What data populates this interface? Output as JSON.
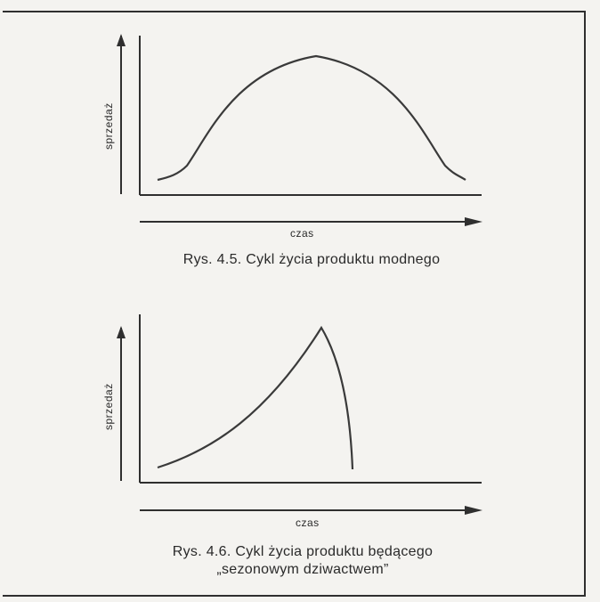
{
  "figures": [
    {
      "ylabel": "sprzedaż",
      "xlabel": "czas",
      "caption_lines": [
        "Rys. 4.5. Cykl życia produktu modnego"
      ]
    },
    {
      "ylabel": "sprzedaż",
      "xlabel": "czas",
      "caption_lines": [
        "Rys. 4.6. Cykl życia produktu będącego",
        "„sezonowym dziwactwem”"
      ]
    }
  ]
}
